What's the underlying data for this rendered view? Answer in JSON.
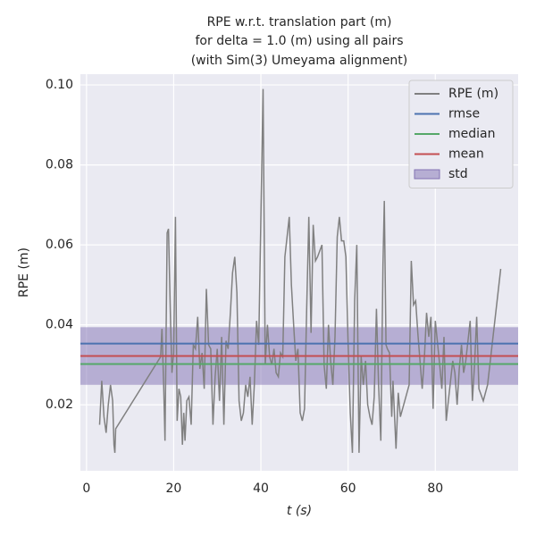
{
  "chart_data": {
    "type": "line",
    "title": [
      "RPE w.r.t. translation part (m)",
      "for delta = 1.0 (m) using all pairs",
      "(with Sim(3) Umeyama alignment)"
    ],
    "x_label": "t (s)",
    "y_label": "RPE (m)",
    "xlim": [
      -1.4,
      99.0
    ],
    "ylim": [
      0.0035,
      0.1027
    ],
    "xticks": [
      0,
      20,
      40,
      60,
      80
    ],
    "yticks": [
      0.02,
      0.04,
      0.06,
      0.08,
      {
        "value": 0.1,
        "label": "0.10"
      }
    ],
    "grid": true,
    "legend": "upper right",
    "series": [
      {
        "name": "RPE (m)",
        "color": "#808080",
        "x": [
          3,
          3.5,
          4,
          4.5,
          5,
          5.5,
          6,
          6.3,
          6.5,
          6.7,
          17,
          17.3,
          17.7,
          18,
          18.5,
          18.8,
          19.3,
          19.6,
          20,
          20.4,
          20.8,
          21.2,
          21.6,
          22,
          22.3,
          22.6,
          23,
          23.5,
          24,
          24.5,
          25,
          25.5,
          26,
          26.5,
          27,
          27.5,
          28,
          28.5,
          29,
          29.5,
          30,
          30.5,
          31,
          31.5,
          32,
          32.5,
          33,
          33.5,
          34,
          34.5,
          35,
          35.5,
          36,
          36.5,
          37,
          37.5,
          38,
          38.5,
          39,
          39.5,
          40.5,
          41,
          41.5,
          42,
          42.5,
          43,
          43.5,
          44,
          44.5,
          45,
          45.5,
          46.5,
          47,
          47.5,
          48,
          48.5,
          49,
          49.5,
          50,
          50.5,
          51,
          51.5,
          52,
          52.5,
          53,
          54,
          54.5,
          55,
          55.5,
          56,
          56.5,
          57,
          57.5,
          58,
          58.5,
          59,
          59.5,
          60,
          60.5,
          61,
          61.5,
          62,
          62.5,
          63,
          63.5,
          64,
          64.5,
          65,
          65.5,
          66,
          66.5,
          67,
          67.5,
          68,
          68.3,
          68.7,
          69,
          69.5,
          70,
          70.3,
          70.7,
          71,
          71.5,
          72,
          73,
          74,
          74.5,
          75,
          75.5,
          76,
          77,
          77.5,
          78,
          78.5,
          79,
          79.5,
          80,
          81,
          81.5,
          82,
          82.5,
          83,
          84,
          84.5,
          85,
          85.5,
          86,
          86.5,
          87,
          88,
          88.5,
          89,
          89.5,
          90,
          91,
          92,
          95
        ],
        "values": [
          0.015,
          0.026,
          0.017,
          0.013,
          0.02,
          0.025,
          0.021,
          0.01,
          0.008,
          0.014,
          0.032,
          0.039,
          0.025,
          0.011,
          0.063,
          0.064,
          0.04,
          0.028,
          0.033,
          0.067,
          0.016,
          0.024,
          0.022,
          0.01,
          0.018,
          0.011,
          0.021,
          0.022,
          0.015,
          0.035,
          0.034,
          0.042,
          0.029,
          0.033,
          0.024,
          0.049,
          0.035,
          0.034,
          0.015,
          0.027,
          0.034,
          0.021,
          0.037,
          0.015,
          0.036,
          0.034,
          0.043,
          0.053,
          0.057,
          0.048,
          0.021,
          0.016,
          0.018,
          0.025,
          0.022,
          0.027,
          0.015,
          0.025,
          0.041,
          0.035,
          0.099,
          0.03,
          0.04,
          0.032,
          0.03,
          0.034,
          0.028,
          0.027,
          0.033,
          0.032,
          0.057,
          0.067,
          0.05,
          0.04,
          0.031,
          0.034,
          0.018,
          0.016,
          0.019,
          0.044,
          0.067,
          0.038,
          0.065,
          0.056,
          0.057,
          0.06,
          0.03,
          0.024,
          0.04,
          0.031,
          0.025,
          0.037,
          0.062,
          0.067,
          0.061,
          0.061,
          0.057,
          0.035,
          0.018,
          0.008,
          0.046,
          0.06,
          0.008,
          0.032,
          0.025,
          0.031,
          0.02,
          0.017,
          0.015,
          0.022,
          0.044,
          0.025,
          0.011,
          0.055,
          0.071,
          0.035,
          0.034,
          0.033,
          0.017,
          0.026,
          0.016,
          0.009,
          0.023,
          0.017,
          0.021,
          0.025,
          0.056,
          0.045,
          0.046,
          0.038,
          0.024,
          0.032,
          0.043,
          0.037,
          0.042,
          0.019,
          0.041,
          0.03,
          0.024,
          0.037,
          0.016,
          0.021,
          0.031,
          0.028,
          0.02,
          0.029,
          0.035,
          0.028,
          0.031,
          0.041,
          0.021,
          0.03,
          0.042,
          0.024,
          0.021,
          0.025,
          0.054
        ]
      }
    ],
    "hlines": [
      {
        "name": "rmse",
        "value": 0.0353,
        "color": "#4c72b0"
      },
      {
        "name": "median",
        "value": 0.0302,
        "color": "#55a868"
      },
      {
        "name": "mean",
        "value": 0.0322,
        "color": "#c44e52"
      }
    ],
    "band": {
      "name": "std",
      "value": 0.0072,
      "color": "#8172b3"
    }
  }
}
